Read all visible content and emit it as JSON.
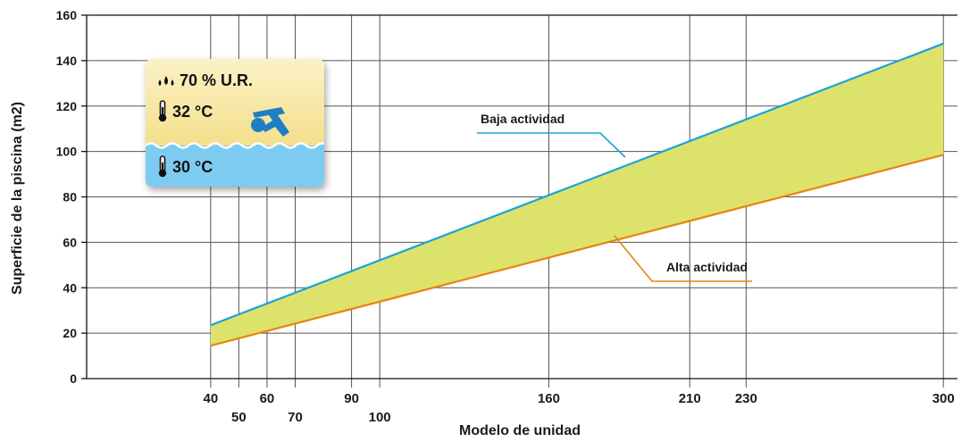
{
  "chart_data": {
    "type": "area",
    "xlabel": "Modelo de unidad",
    "ylabel": "Superficie de la piscina (m2)",
    "ylim": [
      0,
      160
    ],
    "yticks": [
      0,
      20,
      40,
      60,
      80,
      100,
      120,
      140,
      160
    ],
    "xticks": [
      40,
      50,
      60,
      70,
      90,
      100,
      160,
      210,
      230,
      300
    ],
    "xtick_labels": [
      "40",
      "50",
      "60",
      "70",
      "90",
      "100",
      "160",
      "210",
      "230",
      "300"
    ],
    "grid": true,
    "series": [
      {
        "name": "Baja actividad",
        "x": [
          40,
          300
        ],
        "values": [
          23.5,
          147.5
        ],
        "color": "#1aa3d9"
      },
      {
        "name": "Alta actividad",
        "x": [
          40,
          300
        ],
        "values": [
          14.5,
          98.5
        ],
        "color": "#e8830f"
      }
    ],
    "band_fill": "#dde36a"
  },
  "conditions": {
    "humidity": "70 % U.R.",
    "air_temp": "32 °C",
    "water_temp": "30 °C"
  }
}
